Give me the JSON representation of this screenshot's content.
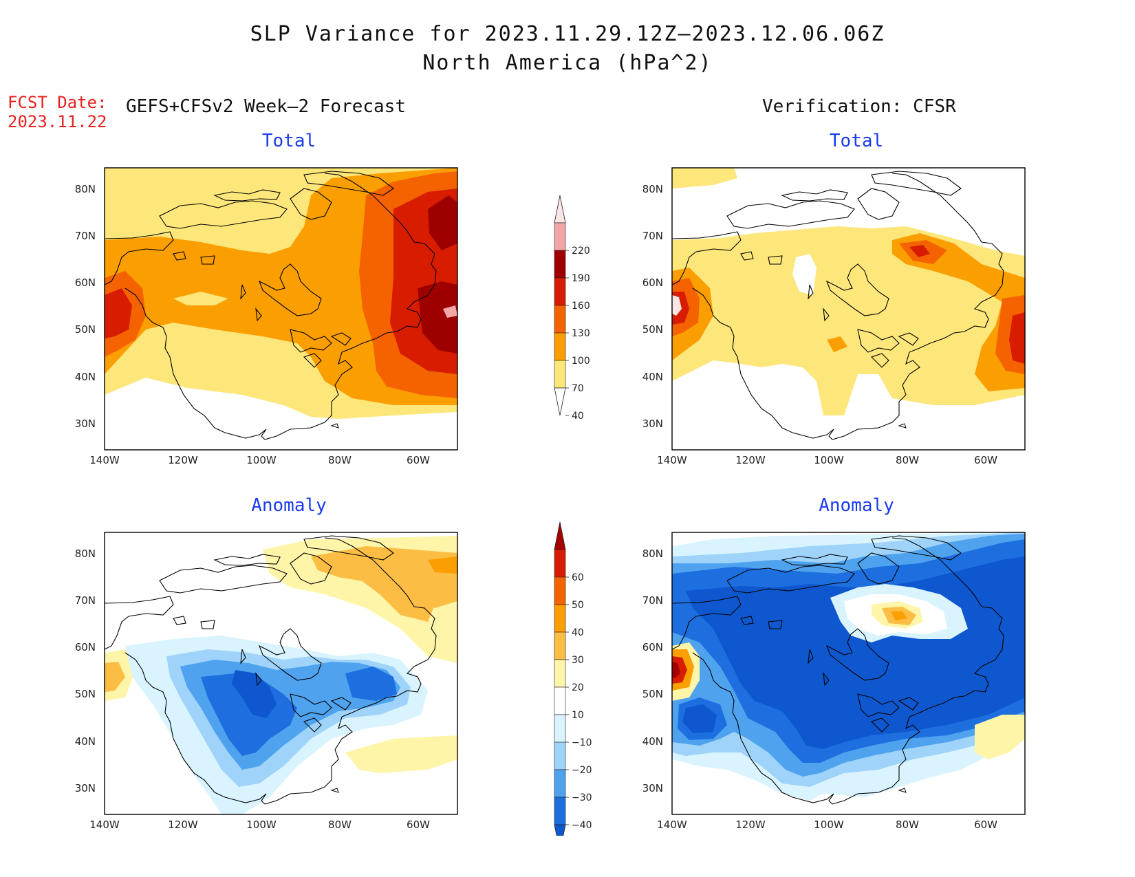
{
  "title": {
    "line1": "SLP Variance for 2023.11.29.12Z–2023.12.06.06Z",
    "line2": "North America (hPa^2)"
  },
  "fcst": {
    "label": "FCST Date:",
    "date": "2023.11.22"
  },
  "headers": {
    "left": "GEFS+CFSv2 Week–2 Forecast",
    "right": "Verification: CFSR"
  },
  "panels": [
    {
      "subtitle": "Total"
    },
    {
      "subtitle": "Total"
    },
    {
      "subtitle": "Anomaly"
    },
    {
      "subtitle": "Anomaly"
    }
  ],
  "axes": {
    "lat_labels": [
      "80N",
      "70N",
      "60N",
      "50N",
      "40N",
      "30N"
    ],
    "lon_labels": [
      "140W",
      "120W",
      "100W",
      "80W",
      "60W"
    ]
  },
  "colorbars": {
    "total": {
      "labels": [
        "220",
        "190",
        "160",
        "130",
        "100",
        "70",
        "40"
      ],
      "colors": [
        "#fbe6e6",
        "#f3a6a6",
        "#9e0000",
        "#d81c00",
        "#f56200",
        "#fb9e00",
        "#fde67a",
        "#ffffff"
      ]
    },
    "anomaly": {
      "labels": [
        "60",
        "50",
        "40",
        "30",
        "20",
        "10",
        "−10",
        "−20",
        "−30",
        "−40"
      ],
      "colors": [
        "#a50000",
        "#d81c00",
        "#f56200",
        "#fb9e00",
        "#fcbd45",
        "#fff5a8",
        "#ffffff",
        "#d9f4ff",
        "#9fd3fa",
        "#4ea2ee",
        "#1d6fe0",
        "#0e57cf"
      ]
    }
  },
  "colors": {
    "title_red": "#e82020",
    "subtitle_blue": "#1a3cf0"
  }
}
